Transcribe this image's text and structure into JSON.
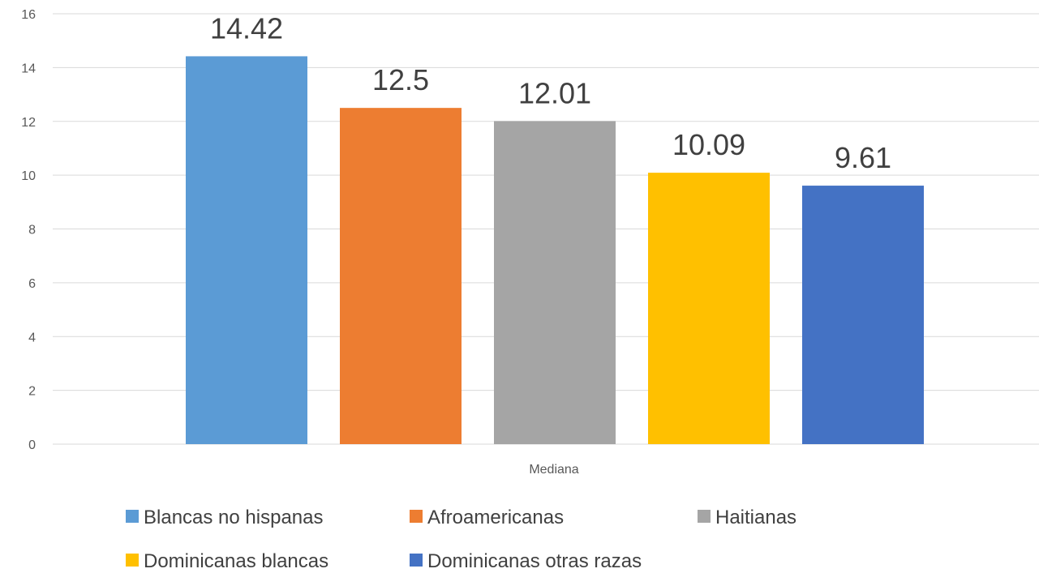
{
  "chart_data": {
    "type": "bar",
    "categories": [
      "Mediana"
    ],
    "series": [
      {
        "name": "Blancas no hispanas",
        "values": [
          14.42
        ],
        "color": "#5B9BD5"
      },
      {
        "name": "Afroamericanas",
        "values": [
          12.5
        ],
        "color": "#ED7D31"
      },
      {
        "name": "Haitianas",
        "values": [
          12.01
        ],
        "color": "#A5A5A5"
      },
      {
        "name": "Dominicanas blancas",
        "values": [
          10.09
        ],
        "color": "#FFC000"
      },
      {
        "name": "Dominicanas otras razas",
        "values": [
          9.61
        ],
        "color": "#4472C4"
      }
    ],
    "data_labels": [
      "14.42",
      "12.5",
      "12.01",
      "10.09",
      "9.61"
    ],
    "yticks": [
      "0",
      "2",
      "4",
      "6",
      "8",
      "10",
      "12",
      "14",
      "16"
    ],
    "ylim": [
      0,
      16
    ],
    "grid": true,
    "legend_position": "bottom"
  }
}
